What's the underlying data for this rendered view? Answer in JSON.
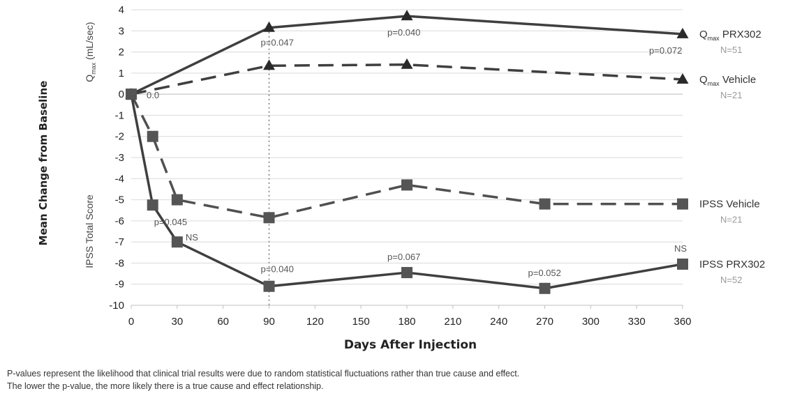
{
  "chart_data": {
    "type": "line",
    "xlabel": "Days After Injection",
    "ylabel": "Mean Change from Baseline",
    "ylabel_upper": {
      "main": "Q",
      "sub": "max",
      "rest": " (mL/sec)"
    },
    "ylabel_lower": "IPSS Total Score",
    "xlim": [
      0,
      360
    ],
    "ylim": [
      -10,
      4
    ],
    "x_ticks": [
      0,
      30,
      60,
      90,
      120,
      150,
      180,
      210,
      240,
      270,
      300,
      330,
      360
    ],
    "y_ticks": [
      4,
      3,
      2,
      1,
      0,
      -1,
      -2,
      -3,
      -4,
      -5,
      -6,
      -7,
      -8,
      -9,
      -10
    ],
    "grid": true,
    "reference_line_x": 90,
    "legend_placement": "right",
    "series": [
      {
        "key": "qmax_prx",
        "legend": {
          "main": "Q",
          "sub": "max",
          "rest": " PRX302"
        },
        "n": "N=51",
        "x": [
          0,
          90,
          180,
          360
        ],
        "y": [
          0,
          3.15,
          3.7,
          2.85
        ],
        "marker": "triangle",
        "line": "solid",
        "color": "#3f3f3f"
      },
      {
        "key": "qmax_vehicle",
        "legend": {
          "main": "Q",
          "sub": "max",
          "rest": " Vehicle"
        },
        "n": "N=21",
        "x": [
          0,
          90,
          180,
          360
        ],
        "y": [
          0,
          1.35,
          1.4,
          0.7
        ],
        "marker": "triangle",
        "line": "dashed",
        "color": "#3f3f3f"
      },
      {
        "key": "ipss_vehicle",
        "legend": {
          "main": "IPSS Vehicle",
          "sub": "",
          "rest": ""
        },
        "n": "N=21",
        "x": [
          0,
          14,
          30,
          90,
          180,
          270,
          360
        ],
        "y": [
          0,
          -2.0,
          -5.0,
          -5.85,
          -4.3,
          -5.2,
          -5.2
        ],
        "marker": "square",
        "line": "dashed",
        "color": "#505050"
      },
      {
        "key": "ipss_prx",
        "legend": {
          "main": "IPSS PRX302",
          "sub": "",
          "rest": ""
        },
        "n": "N=52",
        "x": [
          0,
          14,
          30,
          90,
          180,
          270,
          360
        ],
        "y": [
          0,
          -5.25,
          -7.0,
          -9.1,
          -8.45,
          -9.2,
          -8.05
        ],
        "marker": "square",
        "line": "solid",
        "color": "#3f3f3f"
      }
    ],
    "annotations": [
      {
        "text": "p=0.047",
        "x": 90,
        "y": 3.15,
        "dx": -12,
        "dy": 26
      },
      {
        "text": "p=0.040",
        "x": 180,
        "y": 3.7,
        "dx": -28,
        "dy": 28
      },
      {
        "text": "p=0.072",
        "x": 360,
        "y": 2.85,
        "dx": -48,
        "dy": 28
      },
      {
        "text": "0.0",
        "x": 0,
        "y": 0,
        "dx": 22,
        "dy": 6
      },
      {
        "text": "p=0.045",
        "x": 14,
        "y": -5.25,
        "dx": 2,
        "dy": 29
      },
      {
        "text": "NS",
        "x": 30,
        "y": -7.0,
        "dx": 12,
        "dy": -2
      },
      {
        "text": "p=0.040",
        "x": 90,
        "y": -9.1,
        "dx": -12,
        "dy": -20
      },
      {
        "text": "p=0.067",
        "x": 180,
        "y": -8.45,
        "dx": -28,
        "dy": -18
      },
      {
        "text": "p=0.052",
        "x": 270,
        "y": -9.2,
        "dx": -24,
        "dy": -18
      },
      {
        "text": "NS",
        "x": 360,
        "y": -8.05,
        "dx": -12,
        "dy": -18
      }
    ]
  },
  "footnote": [
    "P-values represent the likelihood that clinical trial results were due to random statistical fluctuations rather than true cause and effect.",
    "The lower the p-value, the more likely there is a true cause and effect relationship."
  ]
}
